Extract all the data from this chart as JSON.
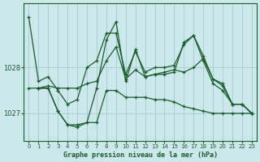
{
  "title": "Graphe pression niveau de la mer (hPa)",
  "background_color": "#cce8ec",
  "grid_color": "#aacdd4",
  "line_color": "#1a5c2a",
  "xlim": [
    -0.5,
    23.5
  ],
  "ylim": [
    1026.4,
    1029.4
  ],
  "yticks": [
    1027,
    1028
  ],
  "xticks": [
    0,
    1,
    2,
    3,
    4,
    5,
    6,
    7,
    8,
    9,
    10,
    11,
    12,
    13,
    14,
    15,
    16,
    17,
    18,
    19,
    20,
    21,
    22,
    23
  ],
  "series": [
    {
      "name": "line1_high",
      "x": [
        0,
        1,
        2,
        3,
        4,
        5,
        6,
        7,
        8,
        9,
        10,
        11,
        12,
        13,
        14,
        15,
        16,
        17,
        18,
        19,
        20,
        21,
        22,
        23
      ],
      "y": [
        1029.1,
        1027.7,
        1027.8,
        1027.5,
        1027.2,
        1027.3,
        1028.0,
        1028.15,
        1028.75,
        1028.75,
        1027.85,
        1028.35,
        1027.9,
        1028.0,
        1028.0,
        1028.05,
        1028.5,
        1028.7,
        1028.25,
        1027.75,
        1027.6,
        1027.2,
        1027.2,
        1027.0
      ]
    },
    {
      "name": "line2_mid_upper",
      "x": [
        0,
        1,
        2,
        3,
        4,
        5,
        6,
        7,
        8,
        9,
        10,
        11,
        12,
        13,
        14,
        15,
        16,
        17,
        18,
        19,
        20,
        21,
        22,
        23
      ],
      "y": [
        1027.55,
        1027.55,
        1027.6,
        1027.55,
        1027.55,
        1027.55,
        1027.65,
        1027.7,
        1028.15,
        1028.45,
        1027.75,
        1027.95,
        1027.8,
        1027.85,
        1027.9,
        1027.95,
        1027.9,
        1028.0,
        1028.2,
        1027.75,
        1027.65,
        1027.2,
        1027.2,
        1027.0
      ]
    },
    {
      "name": "line3_mid_lower",
      "x": [
        1,
        2,
        3,
        4,
        5,
        6,
        7,
        8,
        9,
        10,
        11,
        12,
        13,
        14,
        15,
        16,
        17,
        18,
        19,
        20,
        21,
        22,
        23
      ],
      "y": [
        1027.55,
        1027.55,
        1027.05,
        1026.75,
        1026.75,
        1026.8,
        1026.8,
        1027.5,
        1027.5,
        1027.35,
        1027.35,
        1027.35,
        1027.3,
        1027.3,
        1027.25,
        1027.15,
        1027.1,
        1027.05,
        1027.0,
        1027.0,
        1027.0,
        1027.0,
        1027.0
      ]
    },
    {
      "name": "line4_volatile",
      "x": [
        1,
        2,
        3,
        4,
        5,
        6,
        7,
        8,
        9,
        10,
        11,
        12,
        13,
        14,
        15,
        16,
        17,
        18,
        19,
        20,
        21,
        22,
        23
      ],
      "y": [
        1027.55,
        1027.55,
        1027.05,
        1026.75,
        1026.7,
        1026.8,
        1027.55,
        1028.6,
        1029.0,
        1027.7,
        1028.4,
        1027.8,
        1027.85,
        1027.85,
        1027.9,
        1028.55,
        1028.7,
        1028.15,
        1027.65,
        1027.5,
        1027.2,
        1027.2,
        1027.0
      ]
    }
  ]
}
